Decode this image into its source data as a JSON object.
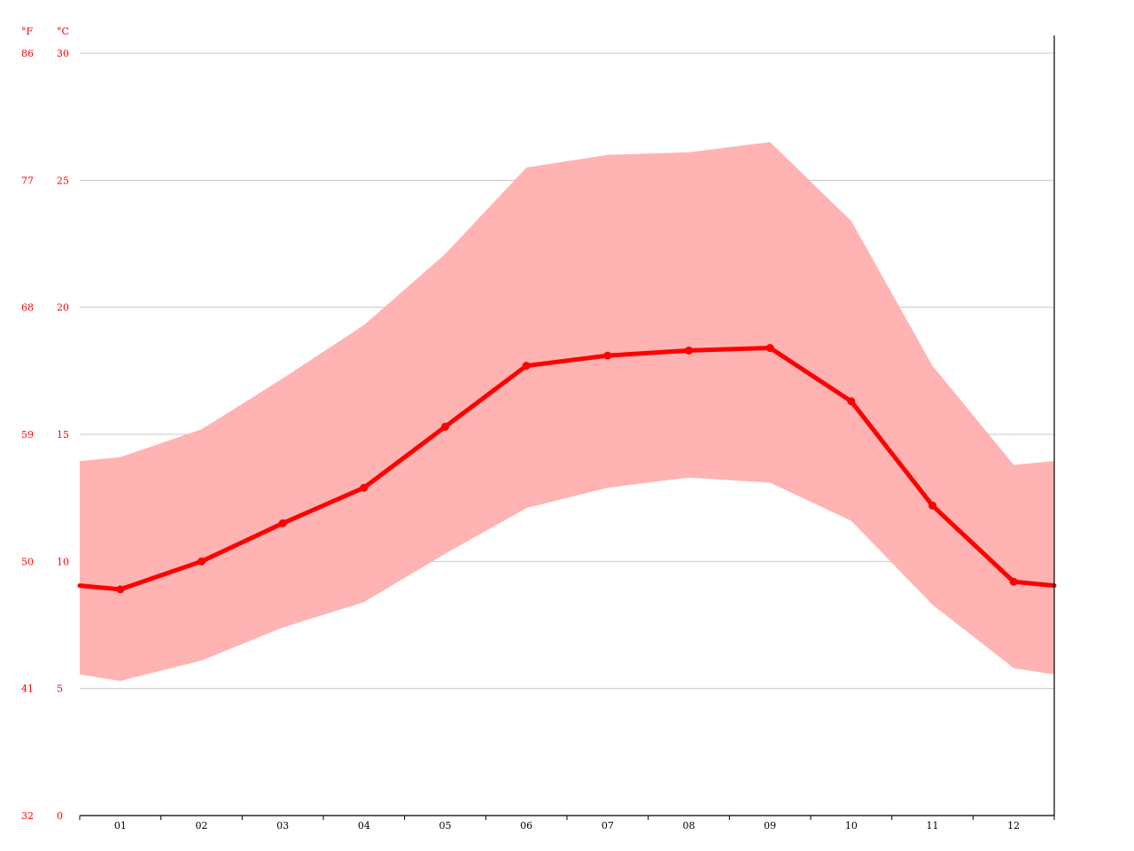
{
  "chart_data": {
    "type": "area",
    "y_unit_left": "°F",
    "y_unit_right": "°C",
    "categories": [
      "01",
      "02",
      "03",
      "04",
      "05",
      "06",
      "07",
      "08",
      "09",
      "10",
      "11",
      "12"
    ],
    "y_ticks_c": [
      0,
      5,
      10,
      15,
      20,
      25,
      30
    ],
    "y_ticks_f": [
      32,
      41,
      50,
      59,
      68,
      77,
      86
    ],
    "ylim": [
      0,
      30
    ],
    "grid": true,
    "series": [
      {
        "values": [
          8.9,
          10.0,
          11.5,
          12.9,
          15.3,
          17.7,
          18.1,
          18.3,
          18.4,
          16.3,
          12.2,
          9.2
        ]
      },
      {
        "values": [
          14.1,
          15.2,
          17.2,
          19.3,
          22.1,
          25.5,
          26.0,
          26.1,
          26.5,
          23.4,
          17.7,
          13.8
        ]
      },
      {
        "values": [
          5.3,
          6.1,
          7.4,
          8.4,
          10.3,
          12.1,
          12.9,
          13.3,
          13.1,
          11.6,
          8.3,
          5.8
        ]
      }
    ],
    "colors": {
      "mean": "#ff0000",
      "band": "#ffb3b3",
      "grid": "#c8c8c8",
      "axis": "#000000",
      "tick_labels": "#ff0000"
    }
  }
}
